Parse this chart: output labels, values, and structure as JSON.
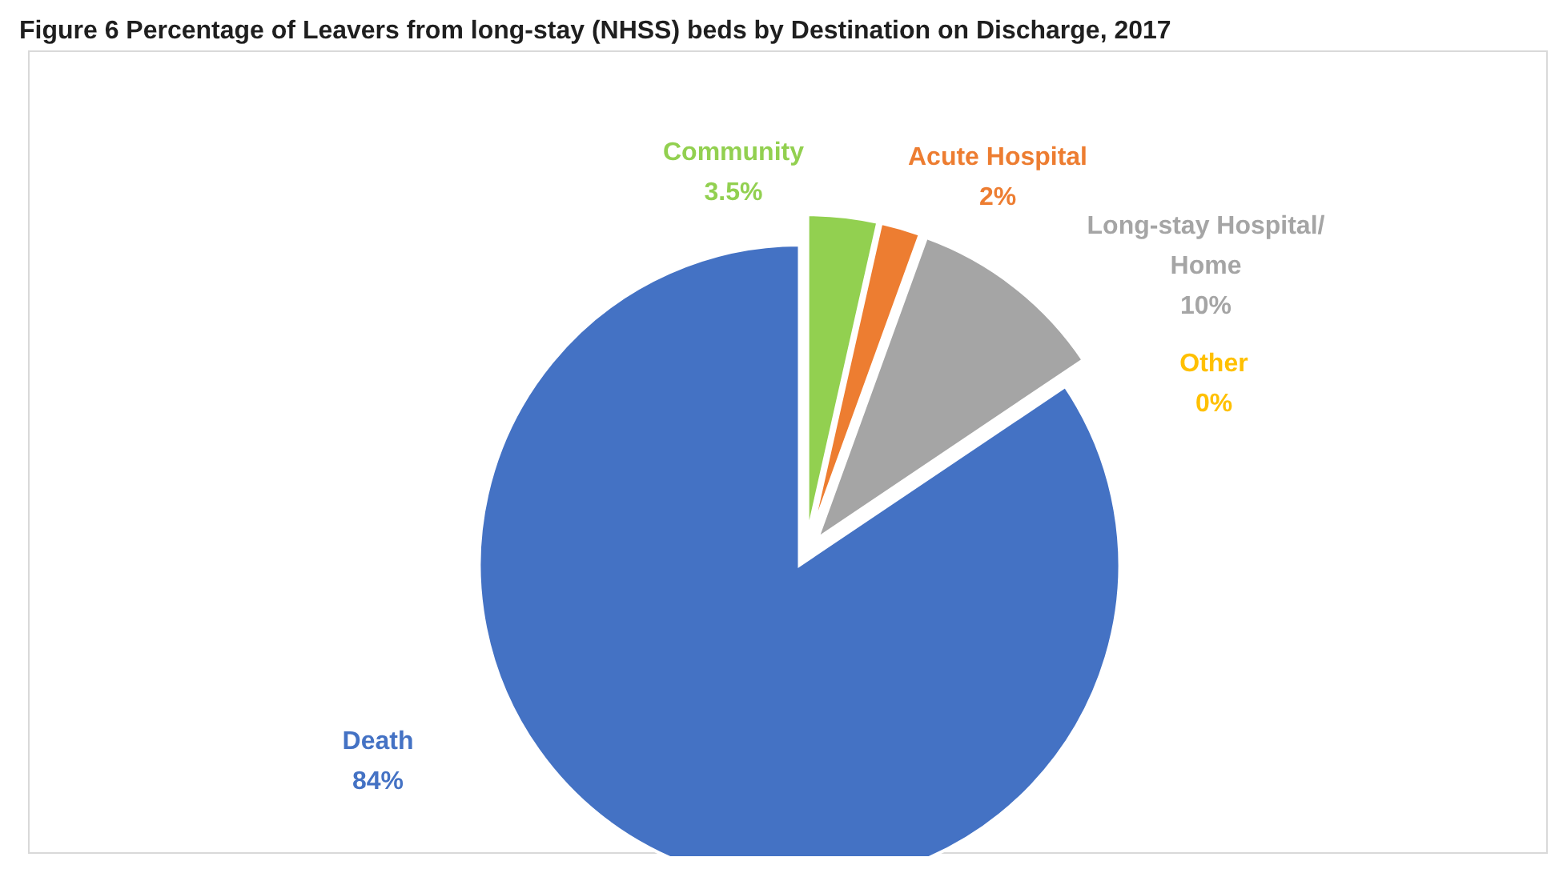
{
  "chart_data": {
    "type": "pie",
    "title": "Figure 6 Percentage of Leavers from long-stay (NHSS) beds by Destination on Discharge, 2017",
    "categories": [
      "Community",
      "Acute Hospital",
      "Long-stay Hospital/ Home",
      "Other",
      "Death"
    ],
    "values": [
      3.5,
      2,
      10,
      0,
      84
    ],
    "value_labels": [
      "3.5%",
      "2%",
      "10%",
      "0%",
      "84%"
    ],
    "colors": [
      "#92d050",
      "#ed7d31",
      "#a5a5a5",
      "#ffc000",
      "#4472c4"
    ],
    "legend": false
  }
}
